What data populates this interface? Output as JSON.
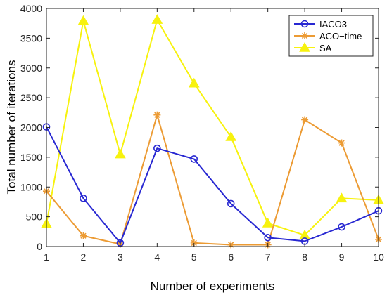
{
  "chart_data": {
    "type": "line",
    "title": "",
    "xlabel": "Number of experiments",
    "ylabel": "Total number of iterations",
    "xlim": [
      1,
      10
    ],
    "ylim": [
      0,
      4000
    ],
    "x": [
      1,
      2,
      3,
      4,
      5,
      6,
      7,
      8,
      9,
      10
    ],
    "xticks": [
      "1",
      "2",
      "3",
      "4",
      "5",
      "6",
      "7",
      "8",
      "9",
      "10"
    ],
    "yticks": [
      "0",
      "500",
      "1000",
      "1500",
      "2000",
      "2500",
      "3000",
      "3500",
      "4000"
    ],
    "grid": false,
    "legend_position": "top-right",
    "series": [
      {
        "name": "IACO3",
        "color": "#2828d2",
        "marker": "circle",
        "values": [
          2010,
          810,
          60,
          1650,
          1470,
          720,
          150,
          90,
          330,
          600
        ]
      },
      {
        "name": "ACO−time",
        "color": "#ec9b34",
        "marker": "star",
        "values": [
          930,
          180,
          40,
          2210,
          60,
          30,
          30,
          2130,
          1740,
          120
        ]
      },
      {
        "name": "SA",
        "color": "#f7f20e",
        "marker": "triangle",
        "values": [
          380,
          3790,
          1550,
          3810,
          2740,
          1840,
          390,
          190,
          810,
          780
        ]
      }
    ]
  }
}
